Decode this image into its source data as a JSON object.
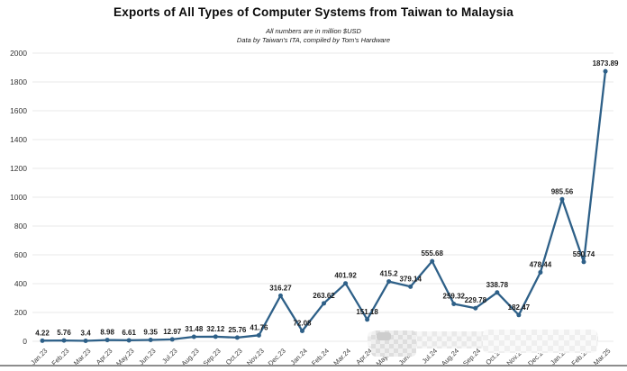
{
  "chart_data": {
    "type": "line",
    "title": "Exports of All Types of Computer Systems from Taiwan to Malaysia",
    "subtitle_line1": "All numbers are in million $USD",
    "subtitle_line2": "Data by Taiwan's ITA, compiled by Tom's Hardware",
    "categories": [
      "Jan.23",
      "Feb.23",
      "Mar.23",
      "Apr.23",
      "May.23",
      "Jun.23",
      "Jul.23",
      "Aug.23",
      "Sep.23",
      "Oct.23",
      "Nov.23",
      "Dec.23",
      "Jan.24",
      "Feb.24",
      "Mar.24",
      "Apr.24",
      "May.24",
      "Jun.24",
      "Jul.24",
      "Aug.24",
      "Sep.24",
      "Oct.24",
      "Nov.24",
      "Dec.24",
      "Jan.25",
      "Feb.25",
      "Mar.25"
    ],
    "values": [
      4.22,
      5.76,
      3.4,
      8.98,
      6.61,
      9.35,
      12.97,
      31.48,
      32.12,
      25.76,
      41.76,
      316.27,
      72.08,
      263.62,
      401.92,
      151.18,
      415.2,
      379.14,
      555.68,
      259.32,
      229.78,
      338.78,
      182.47,
      478.44,
      985.56,
      550.74,
      1873.89
    ],
    "ylim": [
      0,
      2000
    ],
    "ytick_interval": 200,
    "ytick_labels": [
      "0",
      "200",
      "400",
      "600",
      "800",
      "1000",
      "1200",
      "1400",
      "1600",
      "1800",
      "2000"
    ],
    "grid": true,
    "legend": false,
    "line_color": "#2e6088",
    "marker_color": "#2e6088",
    "grid_color": "#e8e8e8",
    "data_label_color": "#1c1c1c",
    "axis_text_color": "#333333"
  }
}
